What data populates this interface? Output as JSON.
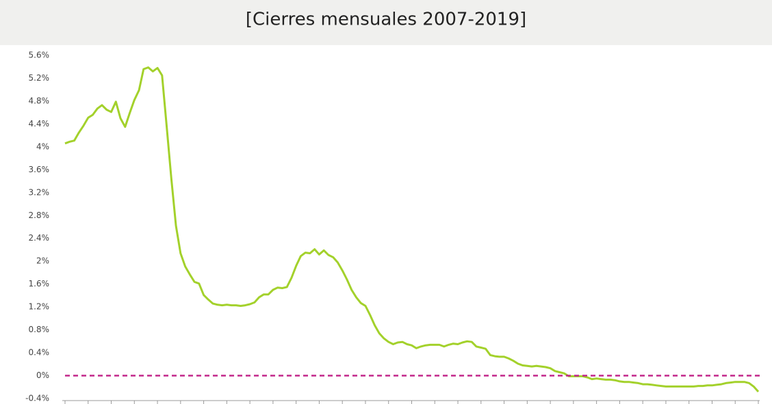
{
  "chart_data": {
    "type": "line",
    "title": "[Cierres mensuales 2007-2019]",
    "color": "#a3d12b",
    "values": [
      4.06,
      4.09,
      4.11,
      4.25,
      4.37,
      4.51,
      4.56,
      4.67,
      4.73,
      4.65,
      4.61,
      4.79,
      4.5,
      4.35,
      4.59,
      4.82,
      4.99,
      5.36,
      5.39,
      5.32,
      5.38,
      5.25,
      4.35,
      3.45,
      2.62,
      2.14,
      1.91,
      1.77,
      1.64,
      1.61,
      1.41,
      1.33,
      1.26,
      1.24,
      1.23,
      1.24,
      1.23,
      1.23,
      1.22,
      1.23,
      1.25,
      1.28,
      1.37,
      1.42,
      1.42,
      1.5,
      1.54,
      1.53,
      1.55,
      1.71,
      1.92,
      2.09,
      2.15,
      2.14,
      2.21,
      2.12,
      2.19,
      2.11,
      2.07,
      1.98,
      1.84,
      1.68,
      1.5,
      1.37,
      1.27,
      1.22,
      1.06,
      0.88,
      0.74,
      0.65,
      0.59,
      0.55,
      0.58,
      0.59,
      0.55,
      0.53,
      0.48,
      0.51,
      0.53,
      0.54,
      0.54,
      0.54,
      0.51,
      0.54,
      0.56,
      0.55,
      0.58,
      0.6,
      0.59,
      0.51,
      0.49,
      0.47,
      0.36,
      0.34,
      0.33,
      0.33,
      0.3,
      0.26,
      0.21,
      0.18,
      0.17,
      0.16,
      0.17,
      0.16,
      0.15,
      0.13,
      0.08,
      0.06,
      0.04,
      -0.01,
      -0.01,
      -0.01,
      -0.01,
      -0.03,
      -0.06,
      -0.05,
      -0.06,
      -0.07,
      -0.07,
      -0.08,
      -0.1,
      -0.11,
      -0.11,
      -0.12,
      -0.13,
      -0.15,
      -0.15,
      -0.16,
      -0.17,
      -0.18,
      -0.19,
      -0.19,
      -0.19,
      -0.19,
      -0.19,
      -0.19,
      -0.19,
      -0.18,
      -0.18,
      -0.17,
      -0.17,
      -0.16,
      -0.15,
      -0.13,
      -0.12,
      -0.11,
      -0.11,
      -0.11,
      -0.13,
      -0.19,
      -0.28
    ],
    "ylim": [
      -0.4,
      5.6
    ],
    "yticks": [
      {
        "value": -0.4,
        "label": "-0.4%"
      },
      {
        "value": 0,
        "label": "0%"
      },
      {
        "value": 0.4,
        "label": "0.4%"
      },
      {
        "value": 0.8,
        "label": "0.8%"
      },
      {
        "value": 1.2,
        "label": "1.2%"
      },
      {
        "value": 1.6,
        "label": "1.6%"
      },
      {
        "value": 2,
        "label": "2%"
      },
      {
        "value": 2.4,
        "label": "2.4%"
      },
      {
        "value": 2.8,
        "label": "2.8%"
      },
      {
        "value": 3.2,
        "label": "3.2%"
      },
      {
        "value": 3.6,
        "label": "3.6%"
      },
      {
        "value": 4,
        "label": "4%"
      },
      {
        "value": 4.4,
        "label": "4.4%"
      },
      {
        "value": 4.8,
        "label": "4.8%"
      },
      {
        "value": 5.2,
        "label": "5.2%"
      },
      {
        "value": 5.6,
        "label": "5.6%"
      }
    ],
    "reference_line": {
      "value": 0,
      "color": "#c2268a"
    }
  }
}
